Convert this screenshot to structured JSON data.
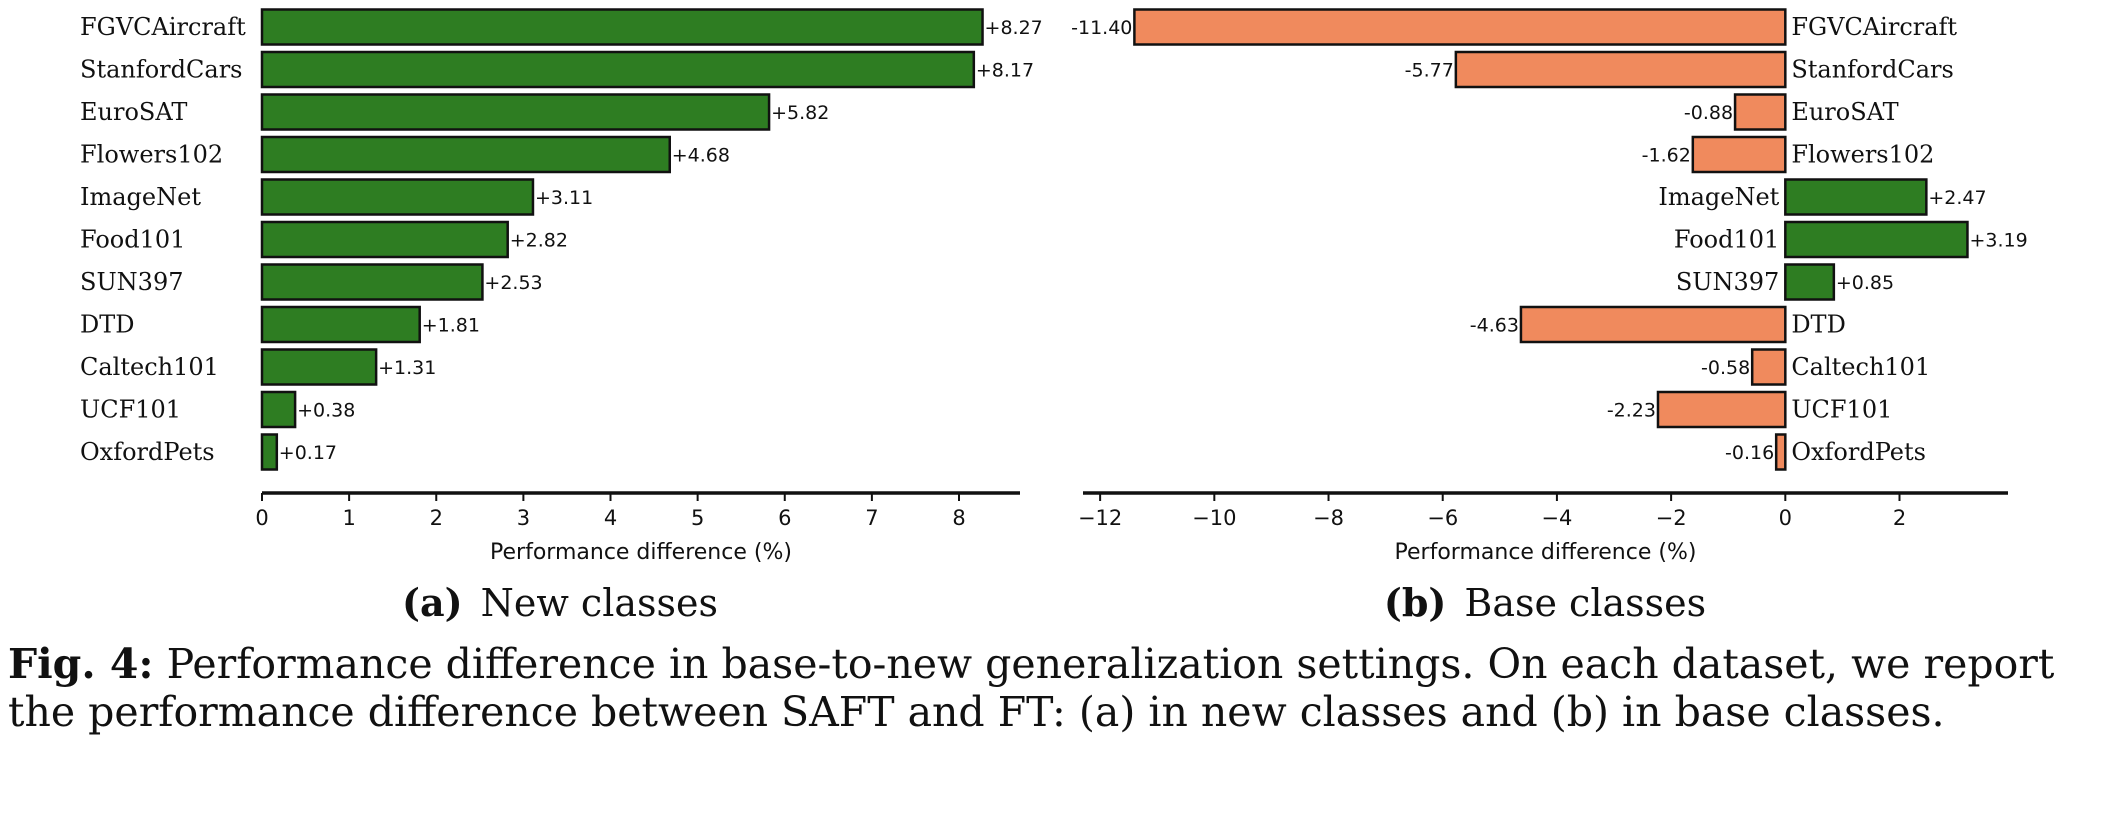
{
  "chart_data": [
    {
      "type": "bar",
      "orientation": "horizontal",
      "subcaption_tag": "(a)",
      "subcaption": "New classes",
      "xlabel": "Performance difference (%)",
      "xlim": [
        0,
        8.7
      ],
      "xticks": [
        0,
        1,
        2,
        3,
        4,
        5,
        6,
        7,
        8
      ],
      "categories": [
        "FGVCAircraft",
        "StanfordCars",
        "EuroSAT",
        "Flowers102",
        "ImageNet",
        "Food101",
        "SUN397",
        "DTD",
        "Caltech101",
        "UCF101",
        "OxfordPets"
      ],
      "values": [
        8.27,
        8.17,
        5.82,
        4.68,
        3.11,
        2.82,
        2.53,
        1.81,
        1.31,
        0.38,
        0.17
      ],
      "value_labels": [
        "+8.27",
        "+8.17",
        "+5.82",
        "+4.68",
        "+3.11",
        "+2.82",
        "+2.53",
        "+1.81",
        "+1.31",
        "+0.38",
        "+0.17"
      ],
      "positive_color": "#2e7d22",
      "negative_color": "#f08a5d",
      "grid": false
    },
    {
      "type": "bar",
      "orientation": "horizontal",
      "subcaption_tag": "(b)",
      "subcaption": "Base classes",
      "xlabel": "Performance difference (%)",
      "xlim": [
        -12.3,
        3.9
      ],
      "xticks": [
        -12,
        -10,
        -8,
        -6,
        -4,
        -2,
        0,
        2
      ],
      "xtick_labels": [
        "−12",
        "−10",
        "−8",
        "−6",
        "−4",
        "−2",
        "0",
        "2"
      ],
      "categories": [
        "FGVCAircraft",
        "StanfordCars",
        "EuroSAT",
        "Flowers102",
        "ImageNet",
        "Food101",
        "SUN397",
        "DTD",
        "Caltech101",
        "UCF101",
        "OxfordPets"
      ],
      "values": [
        -11.4,
        -5.77,
        -0.88,
        -1.62,
        2.47,
        3.19,
        0.85,
        -4.63,
        -0.58,
        -2.23,
        -0.16
      ],
      "value_labels": [
        "-11.40",
        "-5.77",
        "-0.88",
        "-1.62",
        "+2.47",
        "+3.19",
        "+0.85",
        "-4.63",
        "-0.58",
        "-2.23",
        "-0.16"
      ],
      "positive_color": "#2e7d22",
      "negative_color": "#f08a5d",
      "grid": false
    }
  ],
  "caption": {
    "label": "Fig. 4:",
    "text": "Performance difference in base-to-new generalization settings. On each dataset, we report the performance difference between SAFT and FT: (a) in new classes and (b) in base classes."
  }
}
